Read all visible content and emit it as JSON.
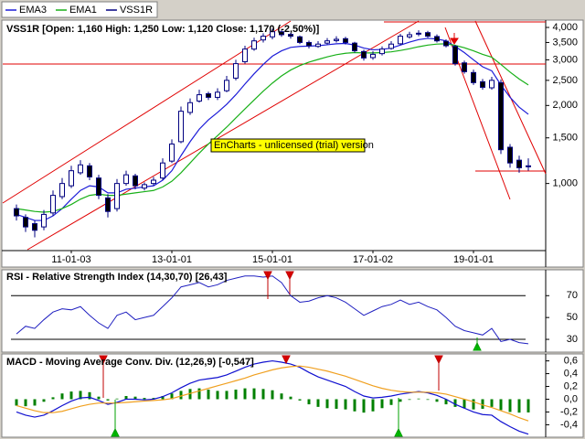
{
  "chart_data": [
    {
      "type": "candlestick",
      "name": "VSS1R",
      "color": "#000080",
      "title": "VSS1R [Open: 1,160 High: 1,250 Low: 1,120 Close: 1,170 (-2,50%)]",
      "annotation": "EnCharts - unlicensed (trial) version",
      "categories": [
        null,
        null,
        null,
        null,
        null,
        null,
        "11-01-03",
        null,
        null,
        null,
        null,
        null,
        null,
        null,
        null,
        null,
        null,
        "13-01-01",
        null,
        null,
        null,
        null,
        null,
        null,
        null,
        null,
        null,
        null,
        "15-01-01",
        null,
        null,
        null,
        null,
        null,
        null,
        null,
        null,
        null,
        null,
        "17-01-02",
        null,
        null,
        null,
        null,
        null,
        null,
        null,
        null,
        null,
        null,
        "19-01-01",
        null,
        null,
        null,
        null,
        null,
        null
      ],
      "open": [
        800,
        740,
        700,
        680,
        770,
        890,
        980,
        1100,
        1170,
        1050,
        880,
        800,
        1000,
        1070,
        960,
        1000,
        1050,
        1220,
        1450,
        1880,
        2080,
        2220,
        2150,
        2280,
        2550,
        2950,
        3300,
        3580,
        3680,
        3850,
        3760,
        3680,
        3500,
        3380,
        3480,
        3560,
        3620,
        3480,
        3230,
        3060,
        3170,
        3320,
        3460,
        3680,
        3780,
        3820,
        3690,
        3540,
        3380,
        2920,
        2680,
        2470,
        2340,
        2450,
        1380,
        1230,
        1160
      ],
      "high": [
        830,
        760,
        720,
        790,
        940,
        1050,
        1170,
        1230,
        1200,
        1080,
        910,
        1040,
        1120,
        1090,
        1010,
        1060,
        1250,
        1480,
        1980,
        2130,
        2300,
        2260,
        2330,
        2600,
        3000,
        3400,
        3650,
        3800,
        3950,
        3900,
        3820,
        3720,
        3560,
        3540,
        3640,
        3700,
        3680,
        3520,
        3280,
        3240,
        3380,
        3540,
        3780,
        3850,
        3900,
        3880,
        3760,
        3600,
        3420,
        2980,
        2750,
        2530,
        2580,
        2520,
        1420,
        1280,
        1250
      ],
      "low": [
        720,
        650,
        620,
        660,
        750,
        870,
        960,
        1080,
        1030,
        870,
        740,
        780,
        980,
        950,
        940,
        980,
        1030,
        1200,
        1430,
        1840,
        2050,
        2100,
        2100,
        2250,
        2500,
        2900,
        3250,
        3500,
        3600,
        3680,
        3620,
        3450,
        3320,
        3340,
        3440,
        3500,
        3440,
        3200,
        2980,
        3000,
        3120,
        3280,
        3420,
        3620,
        3700,
        3650,
        3500,
        3350,
        2850,
        2650,
        2400,
        2300,
        2300,
        1300,
        1150,
        1100,
        1120
      ],
      "close": [
        750,
        680,
        660,
        760,
        900,
        1000,
        1120,
        1180,
        1060,
        900,
        780,
        1000,
        1080,
        980,
        990,
        1030,
        1200,
        1420,
        1900,
        2050,
        2200,
        2150,
        2250,
        2500,
        2900,
        3300,
        3550,
        3700,
        3850,
        3750,
        3700,
        3500,
        3400,
        3450,
        3550,
        3600,
        3500,
        3250,
        3050,
        3150,
        3300,
        3450,
        3700,
        3750,
        3800,
        3700,
        3550,
        3400,
        2900,
        2700,
        2450,
        2350,
        2500,
        1350,
        1200,
        1150,
        1170
      ],
      "series": [
        {
          "name": "EMA3",
          "color": "#1c1cd8",
          "values": [
            760,
            740,
            720,
            720,
            750,
            800,
            870,
            940,
            980,
            970,
            920,
            920,
            950,
            960,
            970,
            980,
            1030,
            1120,
            1280,
            1450,
            1620,
            1760,
            1880,
            2020,
            2200,
            2420,
            2650,
            2880,
            3100,
            3250,
            3350,
            3380,
            3390,
            3400,
            3430,
            3460,
            3470,
            3420,
            3330,
            3280,
            3290,
            3330,
            3420,
            3510,
            3590,
            3630,
            3610,
            3550,
            3380,
            3200,
            3000,
            2820,
            2720,
            2400,
            2150,
            1970,
            1850
          ]
        },
        {
          "name": "EMA1",
          "color": "#18b018",
          "values": [
            800,
            790,
            780,
            775,
            780,
            800,
            830,
            870,
            900,
            910,
            900,
            900,
            910,
            920,
            930,
            940,
            970,
            1020,
            1100,
            1200,
            1310,
            1420,
            1530,
            1650,
            1790,
            1940,
            2100,
            2270,
            2440,
            2600,
            2740,
            2850,
            2940,
            3010,
            3080,
            3140,
            3180,
            3200,
            3190,
            3190,
            3200,
            3220,
            3260,
            3310,
            3370,
            3420,
            3450,
            3460,
            3410,
            3340,
            3250,
            3150,
            3070,
            2880,
            2690,
            2530,
            2400
          ]
        }
      ],
      "log_scale": true,
      "ylim": [
        560,
        4200
      ],
      "yticks": [
        {
          "value": 1000,
          "label": "1,000"
        },
        {
          "value": 1500,
          "label": "1,500"
        },
        {
          "value": 2000,
          "label": "2,000"
        },
        {
          "value": 2500,
          "label": "2,500"
        },
        {
          "value": 3000,
          "label": "3,000"
        },
        {
          "value": 3500,
          "label": "3,500"
        },
        {
          "value": 4000,
          "label": "4,000"
        }
      ]
    },
    {
      "type": "line",
      "title": "RSI - Relative Strength Index (14,30,70) [26,43]",
      "color": "#2020c0",
      "values": [
        35,
        42,
        40,
        48,
        55,
        58,
        57,
        60,
        52,
        45,
        40,
        52,
        55,
        48,
        50,
        52,
        60,
        68,
        78,
        80,
        82,
        78,
        80,
        84,
        86,
        88,
        88,
        87,
        88,
        82,
        70,
        64,
        65,
        68,
        70,
        68,
        64,
        58,
        52,
        56,
        60,
        62,
        66,
        62,
        64,
        60,
        57,
        50,
        42,
        38,
        36,
        34,
        40,
        28,
        30,
        27,
        26
      ],
      "hlines": [
        30,
        70
      ],
      "ylim": [
        20,
        92
      ],
      "yticks": [
        30,
        50,
        70
      ]
    },
    {
      "type": "macd",
      "title": "MACD - Moving Average Conv. Div. (12,26,9) [-0,547]",
      "series": [
        {
          "color": "#1010d0",
          "values": [
            -0.2,
            -0.25,
            -0.28,
            -0.25,
            -0.18,
            -0.1,
            -0.03,
            0.02,
            0.03,
            -0.02,
            -0.08,
            -0.05,
            0,
            0,
            -0.01,
            0,
            0.04,
            0.1,
            0.18,
            0.25,
            0.3,
            0.32,
            0.34,
            0.38,
            0.44,
            0.5,
            0.55,
            0.58,
            0.6,
            0.58,
            0.55,
            0.5,
            0.42,
            0.35,
            0.3,
            0.25,
            0.2,
            0.12,
            0.05,
            0.02,
            0.03,
            0.05,
            0.08,
            0.1,
            0.12,
            0.1,
            0.06,
            0.0,
            -0.08,
            -0.14,
            -0.2,
            -0.24,
            -0.25,
            -0.35,
            -0.43,
            -0.5,
            -0.547
          ]
        },
        {
          "color": "#f0a020",
          "values": [
            -0.1,
            -0.14,
            -0.18,
            -0.21,
            -0.21,
            -0.19,
            -0.15,
            -0.11,
            -0.08,
            -0.06,
            -0.06,
            -0.06,
            -0.05,
            -0.04,
            -0.03,
            -0.02,
            -0.01,
            0.01,
            0.05,
            0.09,
            0.13,
            0.17,
            0.21,
            0.25,
            0.29,
            0.33,
            0.38,
            0.42,
            0.46,
            0.49,
            0.51,
            0.52,
            0.5,
            0.47,
            0.44,
            0.4,
            0.36,
            0.31,
            0.26,
            0.21,
            0.17,
            0.14,
            0.12,
            0.11,
            0.11,
            0.11,
            0.1,
            0.08,
            0.04,
            0.0,
            -0.04,
            -0.09,
            -0.13,
            -0.18,
            -0.23,
            -0.29,
            -0.34
          ]
        }
      ],
      "bars": {
        "color": "#008000",
        "values": [
          -0.1,
          -0.11,
          -0.1,
          -0.04,
          0.03,
          0.09,
          0.12,
          0.13,
          0.11,
          0.04,
          -0.02,
          0.01,
          0.05,
          0.04,
          0.02,
          0.02,
          0.05,
          0.09,
          0.13,
          0.16,
          0.17,
          0.15,
          0.13,
          0.13,
          0.15,
          0.17,
          0.17,
          0.16,
          0.14,
          0.09,
          0.04,
          -0.02,
          -0.08,
          -0.12,
          -0.14,
          -0.15,
          -0.16,
          -0.19,
          -0.21,
          -0.19,
          -0.14,
          -0.09,
          -0.04,
          -0.01,
          0.01,
          -0.01,
          -0.04,
          -0.08,
          -0.12,
          -0.14,
          -0.16,
          -0.15,
          -0.12,
          -0.17,
          -0.2,
          -0.21,
          -0.207
        ]
      },
      "ylim": [
        -0.58,
        0.68
      ],
      "yticks": [
        {
          "value": -0.4,
          "label": "-0,4"
        },
        {
          "value": -0.2,
          "label": "-0,2"
        },
        {
          "value": 0,
          "label": "0,0"
        },
        {
          "value": 0.2,
          "label": "0,2"
        },
        {
          "value": 0.4,
          "label": "0,4"
        },
        {
          "value": 0.6,
          "label": "0,6"
        }
      ]
    }
  ]
}
